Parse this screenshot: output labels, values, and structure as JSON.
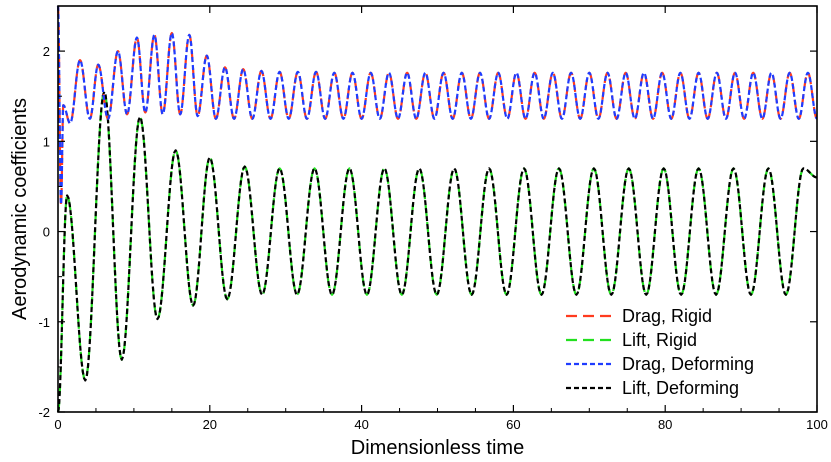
{
  "chart_data": {
    "type": "line",
    "title": "",
    "xlabel": "Dimensionless time",
    "ylabel": "Aerodynamic coefficients",
    "xlim": [
      0,
      100
    ],
    "ylim": [
      -2,
      2.5
    ],
    "xticks": [
      0,
      20,
      40,
      60,
      80,
      100
    ],
    "yticks": [
      -2,
      -1,
      0,
      1,
      2
    ],
    "legend_position": "bottom-right",
    "grid": false,
    "series": [
      {
        "name": "Drag, Rigid",
        "color": "#ff3b1f",
        "line_style": "long-dash",
        "peak_t": [
          0.0,
          0.7,
          2.9,
          5.3,
          7.9,
          10.4,
          12.7,
          15.0,
          17.3,
          19.6,
          22.0,
          24.4,
          26.8,
          29.2,
          31.6,
          34.0,
          36.4,
          38.8,
          41.2,
          43.6,
          46.0,
          48.4,
          50.8,
          53.2,
          55.6,
          58.0,
          60.4,
          62.8,
          65.2,
          67.6,
          70.0,
          72.4,
          74.8,
          77.2,
          79.6,
          82.0,
          84.4,
          86.8,
          89.2,
          91.6,
          94.0,
          96.4,
          98.8
        ],
        "peak_y": [
          2.5,
          1.4,
          1.9,
          1.85,
          2.0,
          2.15,
          2.18,
          2.2,
          2.18,
          1.95,
          1.82,
          1.8,
          1.78,
          1.77,
          1.77,
          1.77,
          1.76,
          1.76,
          1.76,
          1.76,
          1.76,
          1.76,
          1.76,
          1.76,
          1.76,
          1.76,
          1.76,
          1.76,
          1.76,
          1.76,
          1.76,
          1.76,
          1.76,
          1.76,
          1.76,
          1.76,
          1.76,
          1.76,
          1.76,
          1.76,
          1.76,
          1.76,
          1.76
        ],
        "trough_t": [
          0.4,
          1.6,
          4.2,
          6.6,
          9.1,
          11.5,
          13.8,
          16.1,
          18.4,
          20.8,
          23.2,
          25.6,
          28.0,
          30.4,
          32.8,
          35.2,
          37.6,
          40.0,
          42.4,
          44.8,
          47.2,
          49.6,
          52.0,
          54.4,
          56.8,
          59.2,
          61.6,
          64.0,
          66.4,
          68.8,
          71.2,
          73.6,
          76.0,
          78.4,
          80.8,
          83.2,
          85.6,
          88.0,
          90.4,
          92.8,
          95.2,
          97.6
        ],
        "trough_y": [
          0.3,
          1.2,
          1.25,
          1.25,
          1.3,
          1.32,
          1.3,
          1.3,
          1.28,
          1.25,
          1.25,
          1.25,
          1.25,
          1.25,
          1.25,
          1.25,
          1.25,
          1.25,
          1.25,
          1.25,
          1.25,
          1.25,
          1.25,
          1.25,
          1.25,
          1.25,
          1.25,
          1.25,
          1.25,
          1.25,
          1.25,
          1.25,
          1.25,
          1.25,
          1.25,
          1.25,
          1.25,
          1.25,
          1.25,
          1.25,
          1.25,
          1.25
        ],
        "end_y": 1.25
      },
      {
        "name": "Lift, Rigid",
        "color": "#22e01f",
        "line_style": "long-dash",
        "peak_t": [
          1.2,
          6.1,
          10.8,
          15.5,
          20.0,
          24.6,
          29.2,
          33.8,
          38.4,
          43.0,
          47.6,
          52.2,
          56.8,
          61.4,
          66.0,
          70.6,
          75.2,
          79.8,
          84.4,
          89.0,
          93.6,
          98.2
        ],
        "peak_y": [
          0.4,
          1.55,
          1.27,
          0.9,
          0.82,
          0.72,
          0.7,
          0.7,
          0.7,
          0.7,
          0.7,
          0.7,
          0.7,
          0.7,
          0.7,
          0.7,
          0.7,
          0.7,
          0.7,
          0.7,
          0.7,
          0.7
        ],
        "trough_t": [
          0.0,
          3.6,
          8.4,
          13.1,
          17.8,
          22.3,
          26.9,
          31.5,
          36.1,
          40.7,
          45.3,
          49.9,
          54.5,
          59.1,
          63.7,
          68.3,
          72.9,
          77.5,
          82.1,
          86.7,
          91.3,
          95.9
        ],
        "trough_y": [
          -2.0,
          -1.65,
          -1.42,
          -0.97,
          -0.82,
          -0.75,
          -0.7,
          -0.7,
          -0.7,
          -0.7,
          -0.7,
          -0.7,
          -0.7,
          -0.7,
          -0.7,
          -0.7,
          -0.7,
          -0.7,
          -0.7,
          -0.7,
          -0.7,
          -0.7
        ],
        "end_y": 0.6
      },
      {
        "name": "Drag, Deforming",
        "color": "#1f3cff",
        "line_style": "short-dash",
        "same_as": 0
      },
      {
        "name": "Lift, Deforming",
        "color": "#000000",
        "line_style": "short-dash",
        "same_as": 1
      }
    ]
  }
}
